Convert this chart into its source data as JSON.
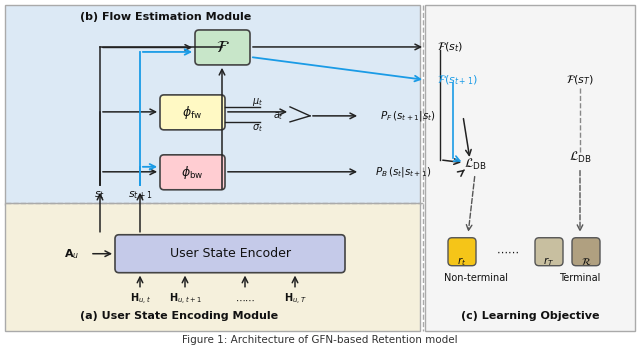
{
  "title": "Figure 1: Architecture of GFN-based Retention model",
  "bg_main": "#dce9f5",
  "bg_lower": "#f5f0dc",
  "bg_right": "#f0f0f0",
  "box_F_color": "#c8e6c9",
  "box_phi_fw_color": "#fff9c4",
  "box_phi_bw_color": "#ffcdd2",
  "box_encoder_color": "#c5cae9",
  "box_rt_color": "#f5c518",
  "box_rT_color": "#c8bfa0",
  "box_R_color": "#b0a080",
  "arrow_blue": "#1a9be6",
  "arrow_black": "#222222",
  "text_color": "#111111",
  "dashed_color": "#888888",
  "label_a": "(a) User State Encoding Module",
  "label_b": "(b) Flow Estimation Module",
  "label_c": "(c) Learning Objective"
}
